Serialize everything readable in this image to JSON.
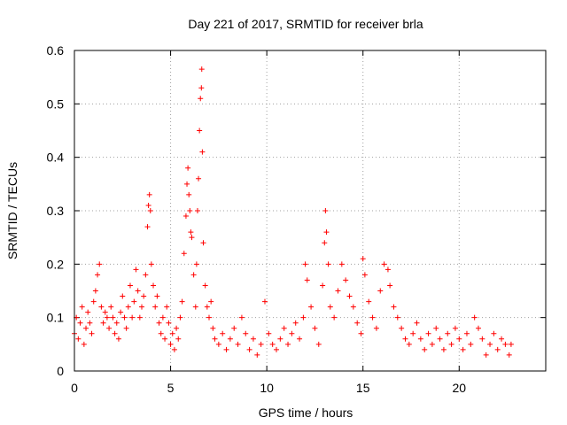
{
  "chart_data": {
    "type": "scatter",
    "title": "Day 221 of 2017, SRMTID for receiver brla",
    "xlabel": "GPS time / hours",
    "ylabel": "SRMTID / TECUs",
    "xlim": [
      0,
      24.5
    ],
    "ylim": [
      0,
      0.6
    ],
    "xticks": [
      0,
      5,
      10,
      15,
      20
    ],
    "xtick_labels": [
      "0",
      "5",
      "10",
      "15",
      "20"
    ],
    "yticks": [
      0,
      0.1,
      0.2,
      0.3,
      0.4,
      0.5,
      0.6
    ],
    "ytick_labels": [
      "0",
      "0.1",
      "0.2",
      "0.3",
      "0.4",
      "0.5",
      "0.6"
    ],
    "grid": true,
    "marker": "+",
    "color": "#ff0000",
    "series": [
      {
        "name": "SRMTID",
        "points": [
          [
            0.0,
            0.07
          ],
          [
            0.1,
            0.1
          ],
          [
            0.2,
            0.06
          ],
          [
            0.3,
            0.09
          ],
          [
            0.4,
            0.12
          ],
          [
            0.5,
            0.05
          ],
          [
            0.6,
            0.08
          ],
          [
            0.7,
            0.11
          ],
          [
            0.8,
            0.09
          ],
          [
            0.9,
            0.07
          ],
          [
            1.0,
            0.13
          ],
          [
            1.1,
            0.15
          ],
          [
            1.2,
            0.18
          ],
          [
            1.3,
            0.2
          ],
          [
            1.4,
            0.12
          ],
          [
            1.5,
            0.09
          ],
          [
            1.6,
            0.11
          ],
          [
            1.7,
            0.1
          ],
          [
            1.8,
            0.08
          ],
          [
            1.9,
            0.12
          ],
          [
            2.0,
            0.1
          ],
          [
            2.1,
            0.07
          ],
          [
            2.2,
            0.09
          ],
          [
            2.3,
            0.06
          ],
          [
            2.4,
            0.11
          ],
          [
            2.5,
            0.14
          ],
          [
            2.6,
            0.1
          ],
          [
            2.7,
            0.08
          ],
          [
            2.8,
            0.12
          ],
          [
            2.9,
            0.16
          ],
          [
            3.0,
            0.1
          ],
          [
            3.1,
            0.13
          ],
          [
            3.2,
            0.19
          ],
          [
            3.3,
            0.15
          ],
          [
            3.4,
            0.1
          ],
          [
            3.5,
            0.12
          ],
          [
            3.6,
            0.14
          ],
          [
            3.7,
            0.18
          ],
          [
            3.8,
            0.27
          ],
          [
            3.85,
            0.31
          ],
          [
            3.9,
            0.33
          ],
          [
            3.95,
            0.3
          ],
          [
            4.0,
            0.2
          ],
          [
            4.1,
            0.16
          ],
          [
            4.2,
            0.12
          ],
          [
            4.3,
            0.14
          ],
          [
            4.4,
            0.09
          ],
          [
            4.5,
            0.07
          ],
          [
            4.6,
            0.1
          ],
          [
            4.7,
            0.06
          ],
          [
            4.8,
            0.12
          ],
          [
            4.9,
            0.09
          ],
          [
            5.0,
            0.05
          ],
          [
            5.1,
            0.07
          ],
          [
            5.2,
            0.04
          ],
          [
            5.3,
            0.08
          ],
          [
            5.4,
            0.06
          ],
          [
            5.5,
            0.1
          ],
          [
            5.6,
            0.13
          ],
          [
            5.7,
            0.22
          ],
          [
            5.8,
            0.29
          ],
          [
            5.85,
            0.35
          ],
          [
            5.9,
            0.38
          ],
          [
            5.95,
            0.33
          ],
          [
            6.0,
            0.3
          ],
          [
            6.05,
            0.26
          ],
          [
            6.1,
            0.25
          ],
          [
            6.2,
            0.18
          ],
          [
            6.3,
            0.12
          ],
          [
            6.35,
            0.2
          ],
          [
            6.4,
            0.3
          ],
          [
            6.45,
            0.36
          ],
          [
            6.5,
            0.45
          ],
          [
            6.55,
            0.51
          ],
          [
            6.6,
            0.53
          ],
          [
            6.62,
            0.565
          ],
          [
            6.65,
            0.41
          ],
          [
            6.7,
            0.24
          ],
          [
            6.8,
            0.16
          ],
          [
            6.9,
            0.12
          ],
          [
            7.0,
            0.1
          ],
          [
            7.1,
            0.13
          ],
          [
            7.2,
            0.08
          ],
          [
            7.3,
            0.06
          ],
          [
            7.5,
            0.05
          ],
          [
            7.7,
            0.07
          ],
          [
            7.9,
            0.04
          ],
          [
            8.1,
            0.06
          ],
          [
            8.3,
            0.08
          ],
          [
            8.5,
            0.05
          ],
          [
            8.7,
            0.1
          ],
          [
            8.9,
            0.07
          ],
          [
            9.1,
            0.04
          ],
          [
            9.3,
            0.06
          ],
          [
            9.5,
            0.03
          ],
          [
            9.7,
            0.05
          ],
          [
            9.9,
            0.13
          ],
          [
            10.1,
            0.07
          ],
          [
            10.3,
            0.05
          ],
          [
            10.5,
            0.04
          ],
          [
            10.7,
            0.06
          ],
          [
            10.9,
            0.08
          ],
          [
            11.1,
            0.05
          ],
          [
            11.3,
            0.07
          ],
          [
            11.5,
            0.09
          ],
          [
            11.7,
            0.06
          ],
          [
            11.9,
            0.1
          ],
          [
            12.0,
            0.2
          ],
          [
            12.1,
            0.17
          ],
          [
            12.3,
            0.12
          ],
          [
            12.5,
            0.08
          ],
          [
            12.7,
            0.05
          ],
          [
            12.9,
            0.16
          ],
          [
            13.0,
            0.24
          ],
          [
            13.05,
            0.3
          ],
          [
            13.1,
            0.26
          ],
          [
            13.2,
            0.2
          ],
          [
            13.3,
            0.12
          ],
          [
            13.5,
            0.1
          ],
          [
            13.7,
            0.15
          ],
          [
            13.9,
            0.2
          ],
          [
            14.1,
            0.17
          ],
          [
            14.3,
            0.14
          ],
          [
            14.5,
            0.12
          ],
          [
            14.7,
            0.09
          ],
          [
            14.9,
            0.07
          ],
          [
            15.0,
            0.21
          ],
          [
            15.1,
            0.18
          ],
          [
            15.3,
            0.13
          ],
          [
            15.5,
            0.1
          ],
          [
            15.7,
            0.08
          ],
          [
            15.9,
            0.15
          ],
          [
            16.1,
            0.2
          ],
          [
            16.3,
            0.19
          ],
          [
            16.4,
            0.16
          ],
          [
            16.6,
            0.12
          ],
          [
            16.8,
            0.1
          ],
          [
            17.0,
            0.08
          ],
          [
            17.2,
            0.06
          ],
          [
            17.4,
            0.05
          ],
          [
            17.6,
            0.07
          ],
          [
            17.8,
            0.09
          ],
          [
            18.0,
            0.06
          ],
          [
            18.2,
            0.04
          ],
          [
            18.4,
            0.07
          ],
          [
            18.6,
            0.05
          ],
          [
            18.8,
            0.08
          ],
          [
            19.0,
            0.06
          ],
          [
            19.2,
            0.04
          ],
          [
            19.4,
            0.07
          ],
          [
            19.6,
            0.05
          ],
          [
            19.8,
            0.08
          ],
          [
            20.0,
            0.06
          ],
          [
            20.2,
            0.04
          ],
          [
            20.4,
            0.07
          ],
          [
            20.6,
            0.05
          ],
          [
            20.8,
            0.1
          ],
          [
            21.0,
            0.08
          ],
          [
            21.2,
            0.06
          ],
          [
            21.4,
            0.03
          ],
          [
            21.6,
            0.05
          ],
          [
            21.8,
            0.07
          ],
          [
            22.0,
            0.04
          ],
          [
            22.2,
            0.06
          ],
          [
            22.4,
            0.05
          ],
          [
            22.6,
            0.03
          ],
          [
            22.7,
            0.05
          ]
        ]
      }
    ]
  }
}
